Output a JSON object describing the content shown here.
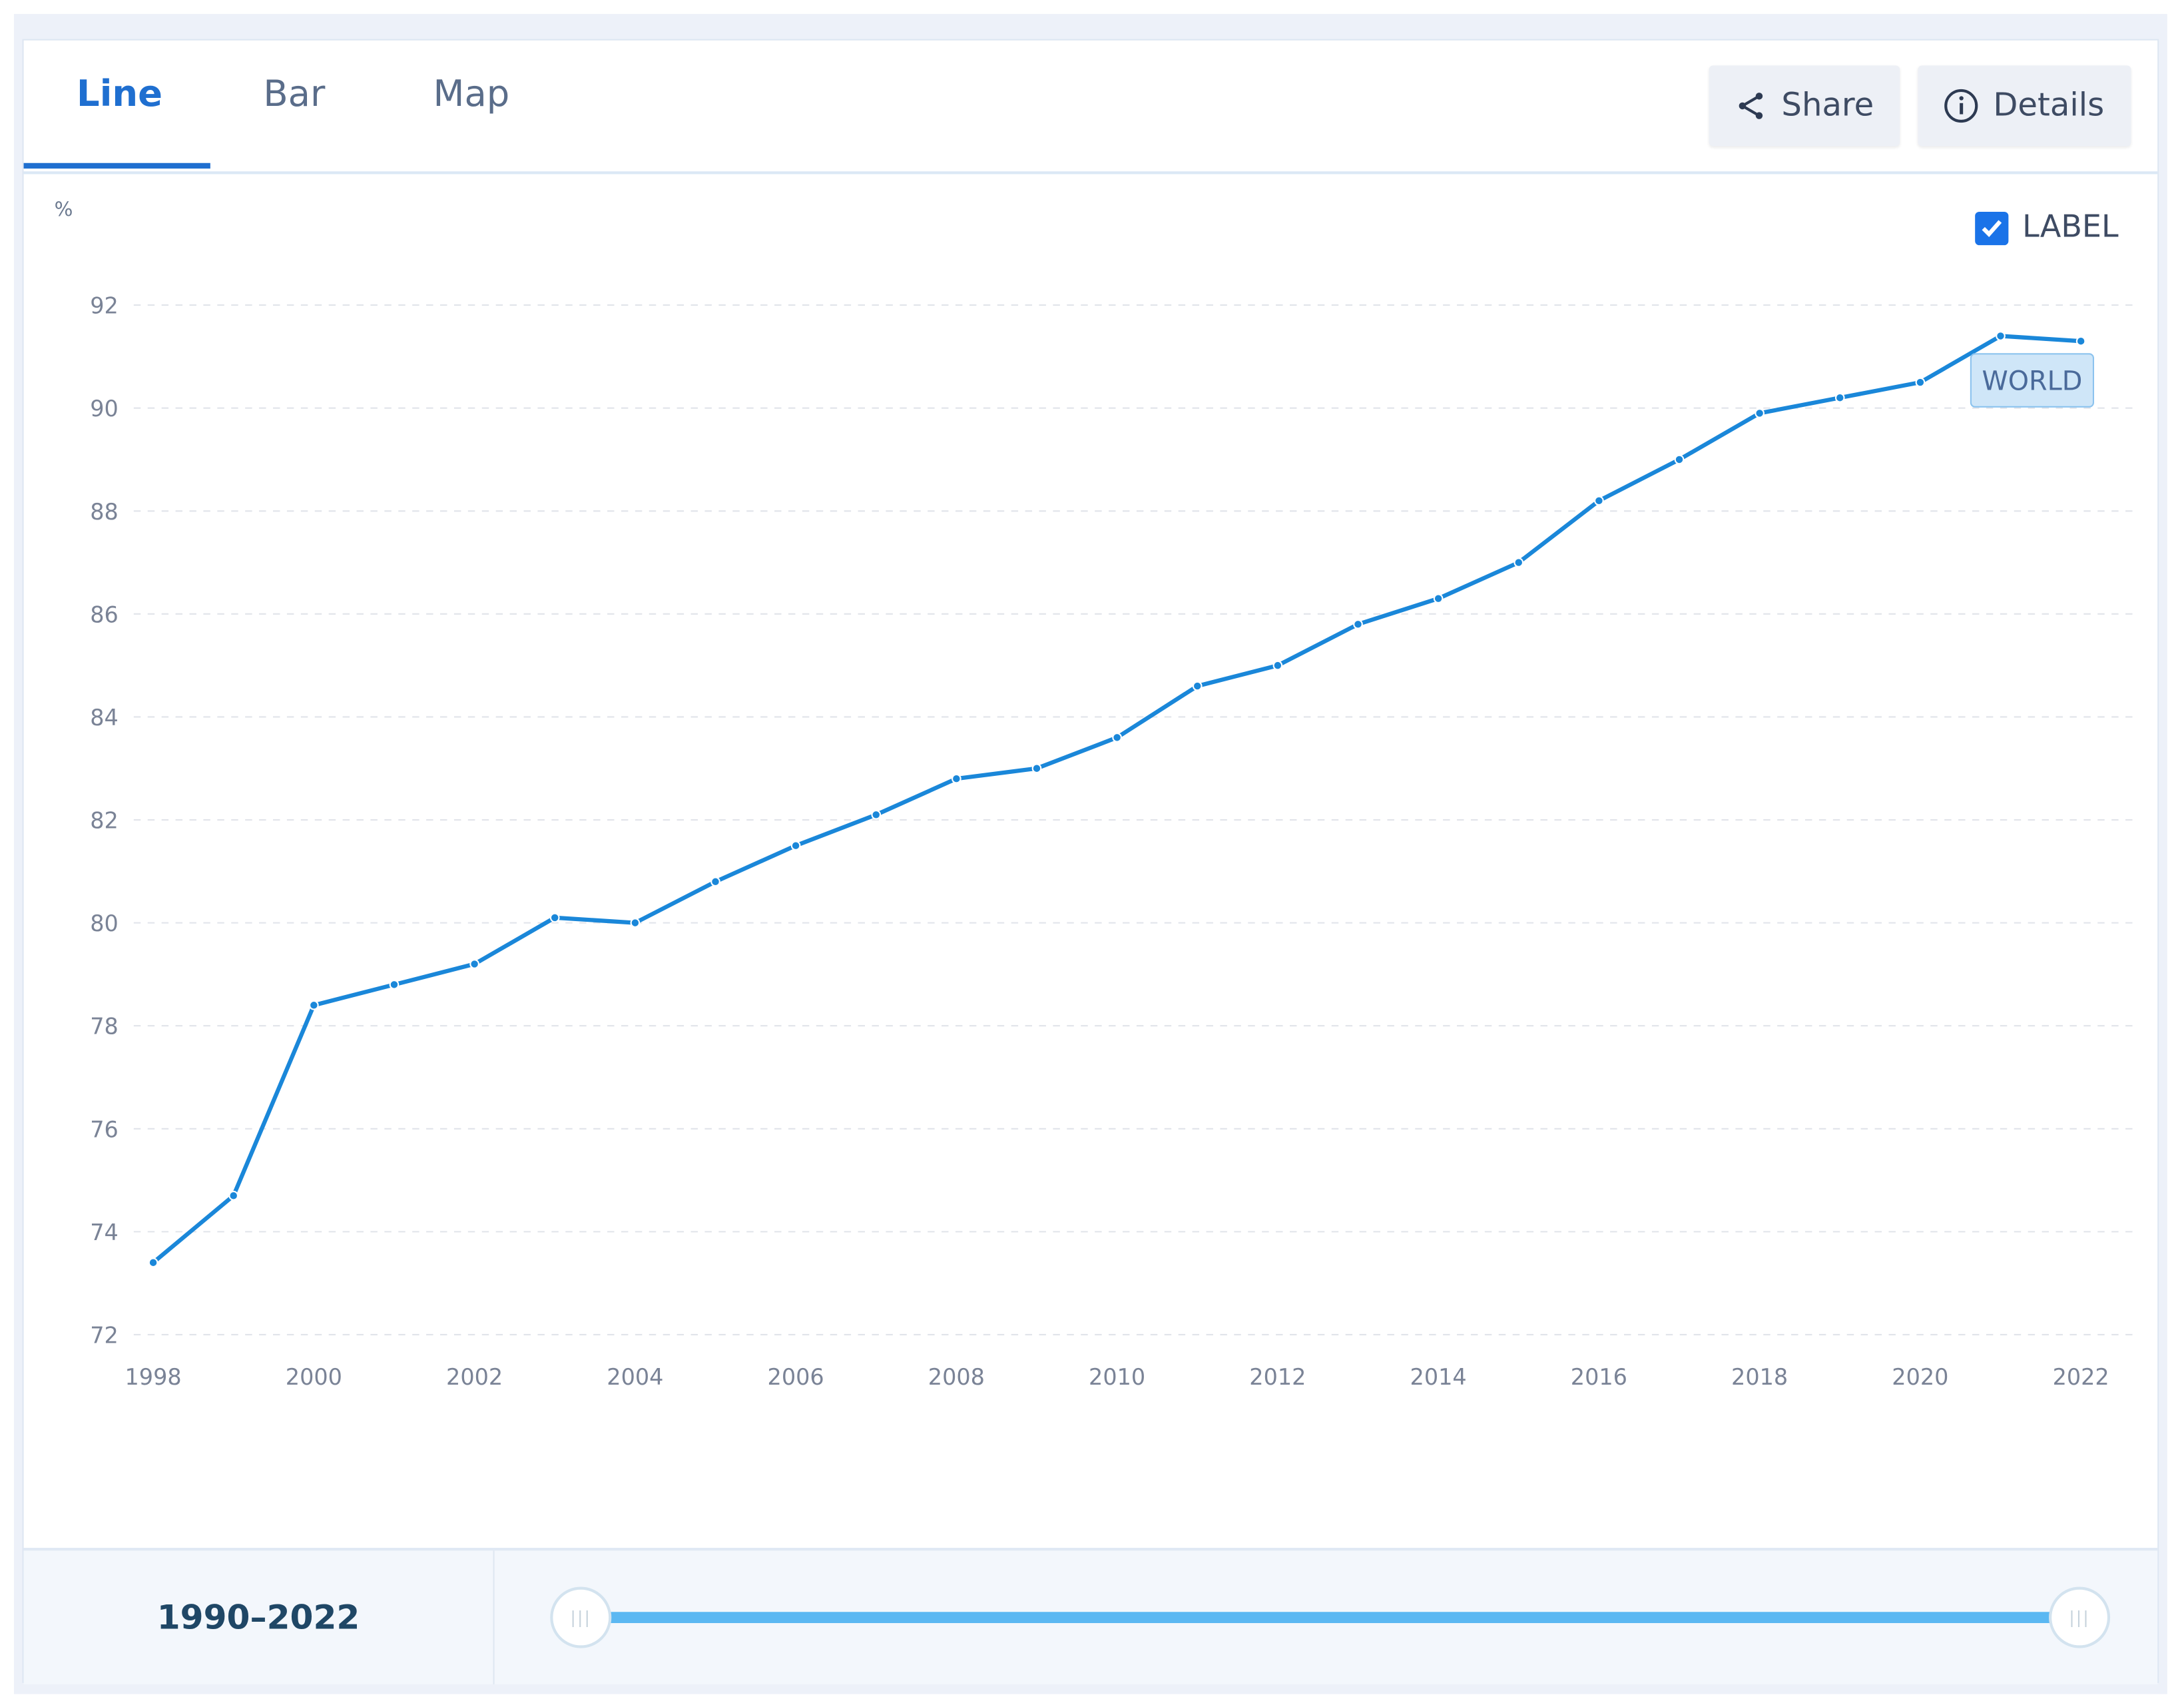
{
  "tabs": [
    {
      "label": "Line"
    },
    {
      "label": "Bar"
    },
    {
      "label": "Map"
    }
  ],
  "toolbar": {
    "share_label": "Share",
    "details_label": "Details"
  },
  "label_toggle": {
    "label": "LABEL",
    "checked": true
  },
  "range": {
    "label": "1990–2022",
    "start": 1990,
    "end": 2022
  },
  "colors": {
    "accent": "#1f6fd0",
    "line": "#1a87d9",
    "slider": "#5bb8f2"
  },
  "chart_data": {
    "type": "line",
    "ylabel": "%",
    "ylim": [
      72,
      92
    ],
    "yticks": [
      "72",
      "74",
      "76",
      "78",
      "80",
      "82",
      "84",
      "86",
      "88",
      "90",
      "92"
    ],
    "xticks": [
      "1998",
      "2000",
      "2002",
      "2004",
      "2006",
      "2008",
      "2010",
      "2012",
      "2014",
      "2016",
      "2018",
      "2020",
      "2022"
    ],
    "grid": true,
    "series": [
      {
        "name": "WORLD",
        "x": [
          1998,
          1999,
          2000,
          2001,
          2002,
          2003,
          2004,
          2005,
          2006,
          2007,
          2008,
          2009,
          2010,
          2011,
          2012,
          2013,
          2014,
          2015,
          2016,
          2017,
          2018,
          2019,
          2020,
          2021,
          2022
        ],
        "values": [
          73.4,
          74.7,
          78.4,
          78.8,
          79.2,
          80.1,
          80.0,
          80.8,
          81.5,
          82.1,
          82.8,
          83.0,
          83.6,
          84.6,
          85.0,
          85.8,
          86.3,
          87.0,
          88.2,
          89.0,
          89.9,
          90.2,
          90.5,
          91.4,
          91.3
        ]
      }
    ],
    "series_label": "WORLD"
  }
}
